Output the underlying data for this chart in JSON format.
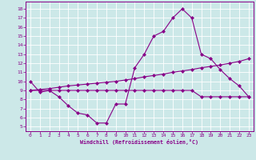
{
  "x": [
    0,
    1,
    2,
    3,
    4,
    5,
    6,
    7,
    8,
    9,
    10,
    11,
    12,
    13,
    14,
    15,
    16,
    17,
    18,
    19,
    20,
    21,
    22,
    23
  ],
  "main_y": [
    10.0,
    8.8,
    9.0,
    8.3,
    7.3,
    6.5,
    6.3,
    5.4,
    5.4,
    7.5,
    7.5,
    11.5,
    13.0,
    15.0,
    15.5,
    17.0,
    18.0,
    17.0,
    13.0,
    12.5,
    11.3,
    10.3,
    9.5,
    8.3
  ],
  "line2_y": [
    9.0,
    9.1,
    9.2,
    9.35,
    9.5,
    9.6,
    9.7,
    9.8,
    9.9,
    10.0,
    10.15,
    10.3,
    10.5,
    10.65,
    10.8,
    11.0,
    11.15,
    11.3,
    11.5,
    11.65,
    11.8,
    12.0,
    12.2,
    12.5
  ],
  "line3_y": [
    9.0,
    9.0,
    9.0,
    9.0,
    9.0,
    9.0,
    9.0,
    9.0,
    9.0,
    9.0,
    9.0,
    9.0,
    9.0,
    9.0,
    9.0,
    9.0,
    9.0,
    9.0,
    8.3,
    8.3,
    8.3,
    8.3,
    8.3,
    8.3
  ],
  "color": "#880088",
  "bg_color": "#cce8e8",
  "grid_color": "#ffffff",
  "xlabel": "Windchill (Refroidissement éolien,°C)",
  "ylim": [
    4.5,
    18.8
  ],
  "xlim": [
    -0.5,
    23.5
  ],
  "yticks": [
    5,
    6,
    7,
    8,
    9,
    10,
    11,
    12,
    13,
    14,
    15,
    16,
    17,
    18
  ],
  "xticks": [
    0,
    1,
    2,
    3,
    4,
    5,
    6,
    7,
    8,
    9,
    10,
    11,
    12,
    13,
    14,
    15,
    16,
    17,
    18,
    19,
    20,
    21,
    22,
    23
  ]
}
